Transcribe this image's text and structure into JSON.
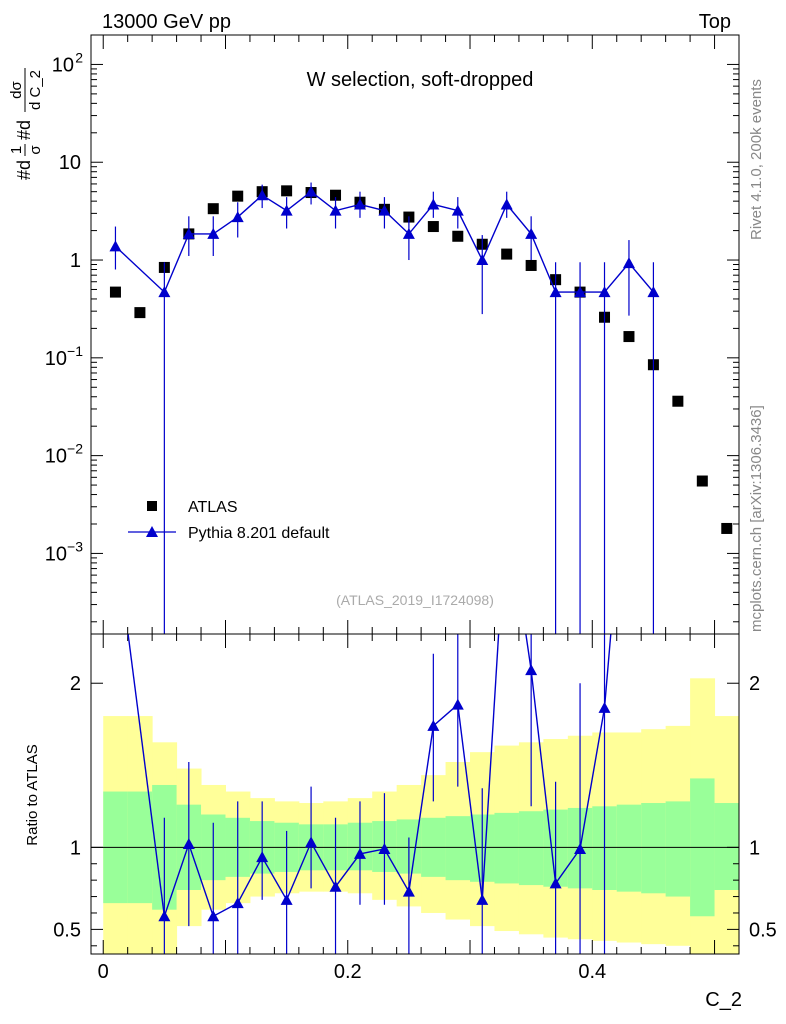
{
  "header": {
    "energy_label": "13000 GeV pp",
    "process_label": "Top"
  },
  "side_labels": {
    "rivet": "Rivet 4.1.0,  200k events",
    "mcplots": "mcplots.cern.ch [arXiv:1306.3436]"
  },
  "chart_data": [
    {
      "type": "scatter",
      "panel": "main",
      "title": "W selection, soft-dropped",
      "analysis_id": "(ATLAS_2019_I1724098)",
      "ylabel_parts": [
        "#d",
        "1",
        "σ",
        "#d",
        "dσ",
        "d C_2"
      ],
      "yscale": "log",
      "ylim": [
        0.00015,
        200
      ],
      "xlim": [
        -0.01,
        0.52
      ],
      "ytick_labels": [
        {
          "value": 100,
          "base": "10",
          "exp": "2"
        },
        {
          "value": 10,
          "base": "10",
          "exp": ""
        },
        {
          "value": 1,
          "base": "1",
          "exp": ""
        },
        {
          "value": 0.1,
          "base": "10",
          "exp": "−1"
        },
        {
          "value": 0.01,
          "base": "10",
          "exp": "−2"
        },
        {
          "value": 0.001,
          "base": "10",
          "exp": "−3"
        }
      ],
      "legend": [
        "ATLAS",
        "Pythia 8.201 default"
      ],
      "series": [
        {
          "name": "ATLAS",
          "color": "#000000",
          "marker": "square",
          "x": [
            0.01,
            0.03,
            0.05,
            0.07,
            0.09,
            0.11,
            0.13,
            0.15,
            0.17,
            0.19,
            0.21,
            0.23,
            0.25,
            0.27,
            0.29,
            0.31,
            0.33,
            0.35,
            0.37,
            0.39,
            0.41,
            0.43,
            0.45,
            0.47,
            0.49,
            0.51
          ],
          "y": [
            0.47,
            0.29,
            0.84,
            1.85,
            3.35,
            4.5,
            5.0,
            5.1,
            4.9,
            4.6,
            3.9,
            3.3,
            2.75,
            2.2,
            1.75,
            1.45,
            1.15,
            0.88,
            0.63,
            0.47,
            0.26,
            0.165,
            0.085,
            0.036,
            0.0055,
            0.0018
          ]
        },
        {
          "name": "Pythia 8.201 default",
          "color": "#0000cc",
          "marker": "triangle",
          "x": [
            0.01,
            0.05,
            0.07,
            0.09,
            0.11,
            0.13,
            0.15,
            0.17,
            0.19,
            0.21,
            0.23,
            0.25,
            0.27,
            0.29,
            0.31,
            0.33,
            0.35,
            0.37,
            0.39,
            0.41,
            0.43,
            0.45
          ],
          "y": [
            1.38,
            0.47,
            1.85,
            1.85,
            2.75,
            4.6,
            3.2,
            5.0,
            3.2,
            3.7,
            3.2,
            1.85,
            3.7,
            3.2,
            1.0,
            3.7,
            1.85,
            0.47,
            0.47,
            0.47,
            0.93,
            0.47
          ],
          "y_low": [
            0.8,
            1e-05,
            1.1,
            1.1,
            1.7,
            3.4,
            2.1,
            3.7,
            2.1,
            2.7,
            2.1,
            1.0,
            2.7,
            2.1,
            0.28,
            2.7,
            1.0,
            1e-05,
            1e-05,
            1e-05,
            0.27,
            1e-05
          ],
          "y_high": [
            2.2,
            0.95,
            2.8,
            2.8,
            3.9,
            5.9,
            4.4,
            6.2,
            4.4,
            5.0,
            4.4,
            2.8,
            5.0,
            4.4,
            1.8,
            5.0,
            2.8,
            0.95,
            0.95,
            0.95,
            1.6,
            0.95
          ]
        }
      ]
    },
    {
      "type": "scatter",
      "panel": "ratio",
      "ylabel": "Ratio to ATLAS",
      "xlabel": "C_2",
      "xlim": [
        -0.01,
        0.52
      ],
      "ylim": [
        0.35,
        2.3
      ],
      "xtick_labels": [
        {
          "value": 0.0,
          "label": "0"
        },
        {
          "value": 0.2,
          "label": "0.2"
        },
        {
          "value": 0.4,
          "label": "0.4"
        }
      ],
      "ytick_labels": [
        {
          "value": 0.5,
          "label": "0.5"
        },
        {
          "value": 1,
          "label": "1"
        },
        {
          "value": 2,
          "label": "2"
        }
      ],
      "bands": {
        "edges": [
          0.0,
          0.02,
          0.04,
          0.06,
          0.08,
          0.1,
          0.12,
          0.14,
          0.16,
          0.18,
          0.2,
          0.22,
          0.24,
          0.26,
          0.28,
          0.3,
          0.32,
          0.34,
          0.36,
          0.38,
          0.4,
          0.42,
          0.44,
          0.46,
          0.48,
          0.5,
          0.52
        ],
        "green_low": [
          0.66,
          0.66,
          0.62,
          0.74,
          0.8,
          0.82,
          0.84,
          0.85,
          0.86,
          0.86,
          0.86,
          0.85,
          0.84,
          0.82,
          0.8,
          0.79,
          0.78,
          0.77,
          0.76,
          0.75,
          0.74,
          0.73,
          0.72,
          0.7,
          0.58,
          0.74
        ],
        "green_high": [
          1.34,
          1.34,
          1.38,
          1.26,
          1.2,
          1.18,
          1.16,
          1.15,
          1.14,
          1.14,
          1.15,
          1.16,
          1.17,
          1.18,
          1.19,
          1.2,
          1.21,
          1.22,
          1.23,
          1.24,
          1.25,
          1.26,
          1.27,
          1.28,
          1.42,
          1.27
        ],
        "yellow_low": [
          0.35,
          0.35,
          0.35,
          0.52,
          0.62,
          0.66,
          0.7,
          0.72,
          0.73,
          0.73,
          0.72,
          0.68,
          0.64,
          0.6,
          0.56,
          0.52,
          0.49,
          0.47,
          0.45,
          0.44,
          0.43,
          0.42,
          0.41,
          0.4,
          0.35,
          0.35
        ],
        "yellow_high": [
          1.8,
          1.8,
          1.64,
          1.48,
          1.38,
          1.34,
          1.3,
          1.28,
          1.27,
          1.28,
          1.3,
          1.34,
          1.38,
          1.44,
          1.52,
          1.58,
          1.62,
          1.64,
          1.66,
          1.68,
          1.7,
          1.7,
          1.72,
          1.74,
          2.03,
          1.8
        ]
      },
      "series": [
        {
          "name": "Pythia 8.201 default",
          "color": "#0000cc",
          "x": [
            0.05,
            0.07,
            0.09,
            0.11,
            0.13,
            0.15,
            0.17,
            0.19,
            0.21,
            0.23,
            0.25,
            0.27,
            0.29,
            0.31,
            0.35,
            0.37,
            0.39,
            0.41
          ],
          "y": [
            0.58,
            1.02,
            0.58,
            0.66,
            0.94,
            0.68,
            1.03,
            0.76,
            0.96,
            0.99,
            0.73,
            1.74,
            1.87,
            0.68,
            2.08,
            0.78,
            0.99,
            1.85
          ],
          "y_low": [
            0.35,
            0.52,
            0.35,
            0.35,
            0.68,
            0.35,
            0.75,
            0.35,
            0.65,
            0.65,
            0.35,
            1.28,
            1.37,
            0.35,
            1.25,
            0.35,
            0.35,
            0.35
          ],
          "y_high": [
            1.18,
            1.52,
            1.15,
            1.28,
            1.28,
            1.1,
            1.37,
            1.18,
            1.28,
            1.33,
            1.06,
            2.18,
            2.34,
            1.36,
            2.3,
            1.4,
            2.0,
            2.3
          ]
        }
      ],
      "overflow_segments": [
        {
          "from": [
            0.01,
            2.9
          ],
          "to": [
            0.05,
            0.58
          ]
        },
        {
          "from": [
            0.31,
            0.68
          ],
          "to": [
            0.33,
            3.1
          ]
        },
        {
          "from": [
            0.33,
            3.1
          ],
          "to": [
            0.35,
            2.08
          ]
        },
        {
          "from": [
            0.41,
            1.85
          ],
          "to": [
            0.43,
            3.6
          ]
        }
      ]
    }
  ]
}
